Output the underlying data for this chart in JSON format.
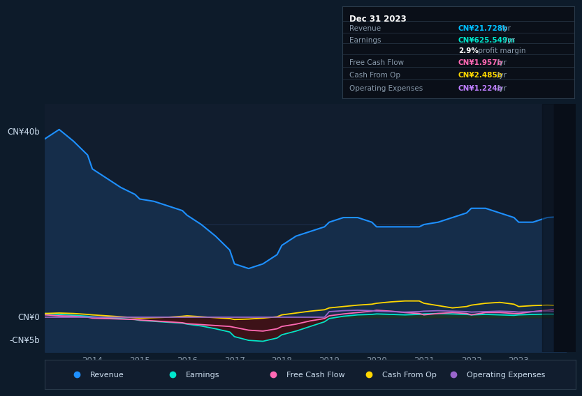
{
  "background_color": "#0d1b2a",
  "plot_bg_color": "#111d2e",
  "title_box": {
    "date": "Dec 31 2023",
    "rows": [
      {
        "label": "Revenue",
        "value": "CN¥21.728b",
        "unit": "/yr",
        "value_color": "#00bfff",
        "bold_value": true
      },
      {
        "label": "Earnings",
        "value": "CN¥625.549m",
        "unit": "/yr",
        "value_color": "#00e5cc",
        "bold_value": true
      },
      {
        "label": "",
        "value": "2.9%",
        "unit": " profit margin",
        "value_color": "#ffffff",
        "bold_value": true
      },
      {
        "label": "Free Cash Flow",
        "value": "CN¥1.957b",
        "unit": "/yr",
        "value_color": "#ff69b4",
        "bold_value": true
      },
      {
        "label": "Cash From Op",
        "value": "CN¥2.485b",
        "unit": "/yr",
        "value_color": "#ffd700",
        "bold_value": true
      },
      {
        "label": "Operating Expenses",
        "value": "CN¥1.224b",
        "unit": "/yr",
        "value_color": "#bf7fff",
        "bold_value": true
      }
    ]
  },
  "years": [
    2013.0,
    2013.3,
    2013.6,
    2013.9,
    2014.0,
    2014.3,
    2014.6,
    2014.9,
    2015.0,
    2015.3,
    2015.6,
    2015.9,
    2016.0,
    2016.3,
    2016.6,
    2016.9,
    2017.0,
    2017.3,
    2017.6,
    2017.9,
    2018.0,
    2018.3,
    2018.6,
    2018.9,
    2019.0,
    2019.3,
    2019.6,
    2019.9,
    2020.0,
    2020.3,
    2020.6,
    2020.9,
    2021.0,
    2021.3,
    2021.6,
    2021.9,
    2022.0,
    2022.3,
    2022.6,
    2022.9,
    2023.0,
    2023.3,
    2023.6,
    2023.9,
    2024.0
  ],
  "revenue": [
    38.5,
    40.5,
    38.0,
    35.0,
    32.0,
    30.0,
    28.0,
    26.5,
    25.5,
    25.0,
    24.0,
    23.0,
    22.0,
    20.0,
    17.5,
    14.5,
    11.5,
    10.5,
    11.5,
    13.5,
    15.5,
    17.5,
    18.5,
    19.5,
    20.5,
    21.5,
    21.5,
    20.5,
    19.5,
    19.5,
    19.5,
    19.5,
    20.0,
    20.5,
    21.5,
    22.5,
    23.5,
    23.5,
    22.5,
    21.5,
    20.5,
    20.5,
    21.5,
    21.7,
    21.728
  ],
  "earnings": [
    0.8,
    0.6,
    0.4,
    0.2,
    0.1,
    -0.1,
    -0.3,
    -0.5,
    -0.7,
    -0.9,
    -1.1,
    -1.3,
    -1.5,
    -1.9,
    -2.5,
    -3.2,
    -4.2,
    -5.0,
    -5.2,
    -4.5,
    -3.8,
    -3.0,
    -2.0,
    -1.0,
    -0.3,
    0.2,
    0.5,
    0.6,
    0.7,
    0.6,
    0.5,
    0.6,
    0.7,
    0.8,
    0.7,
    0.6,
    0.5,
    0.6,
    0.5,
    0.4,
    0.5,
    0.6,
    0.65,
    0.63,
    0.625
  ],
  "free_cash_flow": [
    0.5,
    0.3,
    0.2,
    0.0,
    -0.2,
    -0.3,
    -0.4,
    -0.5,
    -0.6,
    -0.8,
    -1.0,
    -1.2,
    -1.4,
    -1.6,
    -1.8,
    -2.0,
    -2.2,
    -2.8,
    -3.0,
    -2.5,
    -2.0,
    -1.5,
    -0.8,
    -0.3,
    0.3,
    0.7,
    1.0,
    1.3,
    1.5,
    1.3,
    1.0,
    0.8,
    0.5,
    0.8,
    1.0,
    0.8,
    0.5,
    1.0,
    1.0,
    0.8,
    0.8,
    1.2,
    1.5,
    1.9,
    1.957
  ],
  "cash_from_op": [
    0.8,
    0.9,
    0.8,
    0.6,
    0.5,
    0.3,
    0.1,
    -0.1,
    -0.2,
    -0.1,
    0.0,
    0.2,
    0.3,
    0.1,
    -0.1,
    -0.3,
    -0.5,
    -0.4,
    -0.2,
    0.1,
    0.5,
    0.9,
    1.3,
    1.6,
    2.0,
    2.3,
    2.6,
    2.8,
    3.0,
    3.3,
    3.5,
    3.5,
    3.0,
    2.5,
    2.0,
    2.3,
    2.6,
    3.0,
    3.2,
    2.8,
    2.3,
    2.5,
    2.6,
    2.5,
    2.485
  ],
  "operating_expenses": [
    0.0,
    0.0,
    0.0,
    0.0,
    0.0,
    0.0,
    0.0,
    0.0,
    0.0,
    0.0,
    0.0,
    0.0,
    0.0,
    0.0,
    0.0,
    0.0,
    0.0,
    0.0,
    0.0,
    0.0,
    0.0,
    0.0,
    0.0,
    0.0,
    1.2,
    1.4,
    1.5,
    1.4,
    1.3,
    1.2,
    1.1,
    1.2,
    1.3,
    1.4,
    1.3,
    1.2,
    1.1,
    1.2,
    1.3,
    1.2,
    1.1,
    1.2,
    1.3,
    1.224,
    1.224
  ],
  "revenue_color": "#1e90ff",
  "revenue_fill": "#152d4a",
  "earnings_neg_fill": "#3d1218",
  "earnings_color": "#00e5cc",
  "free_cash_flow_color": "#ff69b4",
  "cash_from_op_color": "#ffd700",
  "operating_expenses_color": "#9966cc",
  "zero_line_color": "#556677",
  "grid_line_color": "#1e3050",
  "y_label_40": "CN¥40b",
  "y_label_0": "CN¥0",
  "y_label_neg5": "-CN¥5b",
  "ylim_min": -7.5,
  "ylim_max": 46,
  "xlim_min": 2013.0,
  "xlim_max": 2024.2,
  "legend_items": [
    {
      "label": "Revenue",
      "color": "#1e90ff"
    },
    {
      "label": "Earnings",
      "color": "#00e5cc"
    },
    {
      "label": "Free Cash Flow",
      "color": "#ff69b4"
    },
    {
      "label": "Cash From Op",
      "color": "#ffd700"
    },
    {
      "label": "Operating Expenses",
      "color": "#9966cc"
    }
  ],
  "x_ticks": [
    2014,
    2015,
    2016,
    2017,
    2018,
    2019,
    2020,
    2021,
    2022,
    2023
  ],
  "highlight_x_start": 2023.75,
  "highlight_x_end": 2024.2
}
